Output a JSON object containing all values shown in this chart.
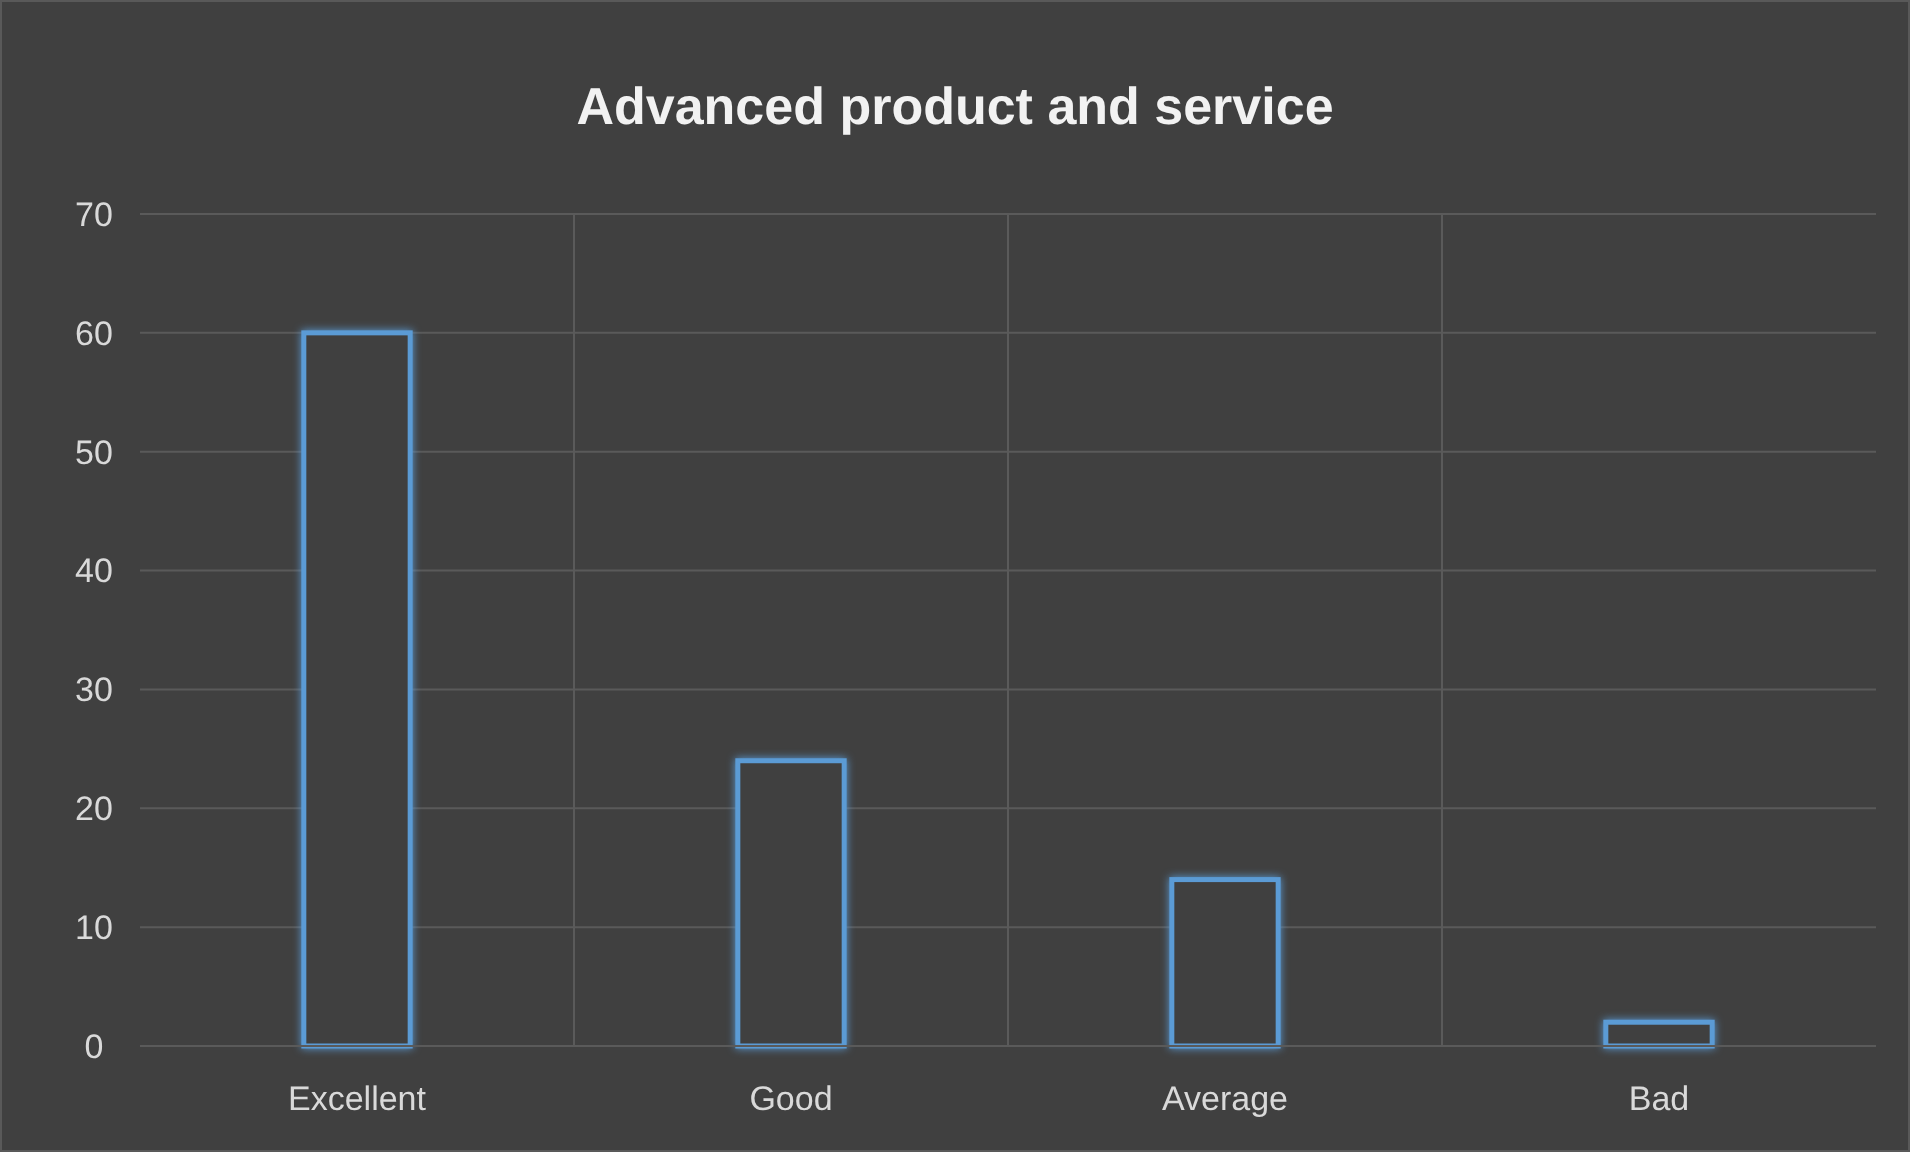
{
  "chart_data": {
    "type": "bar",
    "title": "Advanced product and service",
    "categories": [
      "Excellent",
      "Good",
      "Average",
      "Bad"
    ],
    "values": [
      60,
      24,
      14,
      2
    ],
    "color": "#5b9bd5",
    "ylim": [
      0,
      70
    ],
    "yticks": [
      0,
      10,
      20,
      30,
      40,
      50,
      60,
      70
    ],
    "grid": true
  }
}
